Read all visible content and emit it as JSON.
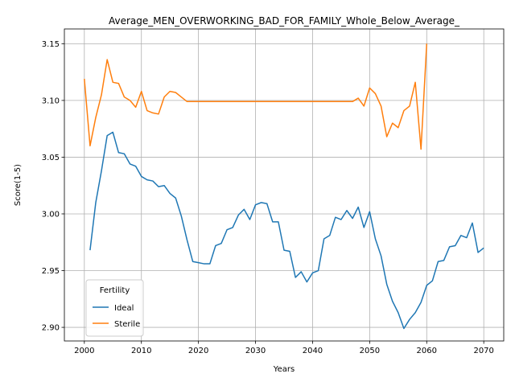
{
  "chart_data": {
    "type": "line",
    "title": "Average_MEN_OVERWORKING_BAD_FOR_FAMILY_Whole_Below_Average_",
    "xlabel": "Years",
    "ylabel": "Score(1-5)",
    "xlim": [
      1996.5,
      2073.5
    ],
    "ylim": [
      2.888,
      3.163
    ],
    "xticks": [
      2000,
      2010,
      2020,
      2030,
      2040,
      2050,
      2060,
      2070
    ],
    "yticks": [
      2.9,
      2.95,
      3.0,
      3.05,
      3.1,
      3.15
    ],
    "ytick_labels": [
      "2.90",
      "2.95",
      "3.00",
      "3.05",
      "3.10",
      "3.15"
    ],
    "grid": true,
    "legend": {
      "title": "Fertility",
      "placement": "lower-left"
    },
    "series": [
      {
        "name": "Ideal",
        "color": "#1f77b4",
        "x": [
          2001,
          2002,
          2003,
          2004,
          2005,
          2006,
          2007,
          2008,
          2009,
          2010,
          2011,
          2012,
          2013,
          2014,
          2015,
          2016,
          2017,
          2018,
          2019,
          2020,
          2021,
          2022,
          2023,
          2024,
          2025,
          2026,
          2027,
          2028,
          2029,
          2030,
          2031,
          2032,
          2033,
          2034,
          2035,
          2036,
          2037,
          2038,
          2039,
          2040,
          2041,
          2042,
          2043,
          2044,
          2045,
          2046,
          2047,
          2048,
          2049,
          2050,
          2051,
          2052,
          2053,
          2054,
          2055,
          2056,
          2057,
          2058,
          2059,
          2060,
          2061,
          2062,
          2063,
          2064,
          2065,
          2066,
          2067,
          2068,
          2069,
          2070
        ],
        "values": [
          2.968,
          3.01,
          3.038,
          3.069,
          3.072,
          3.054,
          3.053,
          3.044,
          3.042,
          3.033,
          3.03,
          3.029,
          3.024,
          3.025,
          3.018,
          3.014,
          2.998,
          2.977,
          2.958,
          2.957,
          2.956,
          2.956,
          2.972,
          2.974,
          2.986,
          2.988,
          2.999,
          3.004,
          2.995,
          3.008,
          3.01,
          3.009,
          2.993,
          2.993,
          2.968,
          2.967,
          2.944,
          2.949,
          2.94,
          2.948,
          2.95,
          2.978,
          2.981,
          2.997,
          2.995,
          3.003,
          2.996,
          3.006,
          2.988,
          3.002,
          2.978,
          2.963,
          2.938,
          2.923,
          2.913,
          2.899,
          2.907,
          2.913,
          2.922,
          2.937,
          2.941,
          2.958,
          2.959,
          2.971,
          2.972,
          2.981,
          2.979,
          2.992,
          2.966,
          2.97
        ]
      },
      {
        "name": "Sterile",
        "color": "#ff7f0e",
        "x": [
          2000,
          2001,
          2002,
          2003,
          2004,
          2005,
          2006,
          2007,
          2008,
          2009,
          2010,
          2011,
          2012,
          2013,
          2014,
          2015,
          2016,
          2017,
          2018,
          2019,
          2020,
          2021,
          2022,
          2023,
          2024,
          2025,
          2026,
          2027,
          2028,
          2029,
          2030,
          2031,
          2032,
          2033,
          2034,
          2035,
          2036,
          2037,
          2038,
          2039,
          2040,
          2041,
          2042,
          2043,
          2044,
          2045,
          2046,
          2047,
          2048,
          2049,
          2050,
          2051,
          2052,
          2053,
          2054,
          2055,
          2056,
          2057,
          2058,
          2059,
          2060
        ],
        "values": [
          3.119,
          3.06,
          3.085,
          3.105,
          3.136,
          3.116,
          3.115,
          3.103,
          3.1,
          3.094,
          3.108,
          3.091,
          3.089,
          3.088,
          3.103,
          3.108,
          3.107,
          3.103,
          3.099,
          3.099,
          3.099,
          3.099,
          3.099,
          3.099,
          3.099,
          3.099,
          3.099,
          3.099,
          3.099,
          3.099,
          3.099,
          3.099,
          3.099,
          3.099,
          3.099,
          3.099,
          3.099,
          3.099,
          3.099,
          3.099,
          3.099,
          3.099,
          3.099,
          3.099,
          3.099,
          3.099,
          3.099,
          3.099,
          3.102,
          3.095,
          3.111,
          3.106,
          3.095,
          3.068,
          3.08,
          3.076,
          3.091,
          3.095,
          3.116,
          3.057,
          3.15
        ]
      }
    ]
  }
}
